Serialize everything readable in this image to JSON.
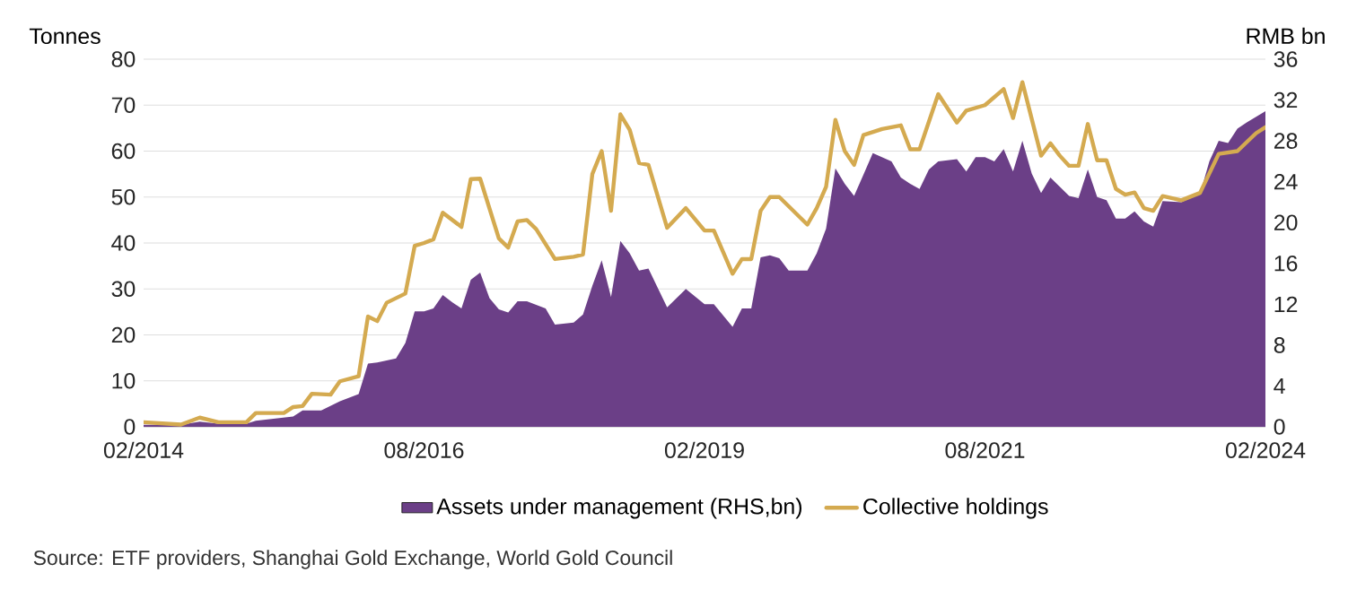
{
  "chart_data": {
    "type": "line",
    "ylabel": "Tonnes",
    "y2label": "RMB bn",
    "xlim": [
      "2014-02",
      "2024-02"
    ],
    "xticks": [
      {
        "value": "2014-02",
        "label": "02/2014"
      },
      {
        "value": "2016-08",
        "label": "08/2016"
      },
      {
        "value": "2019-02",
        "label": "02/2019"
      },
      {
        "value": "2021-08",
        "label": "08/2021"
      },
      {
        "value": "2024-02",
        "label": "02/2024"
      }
    ],
    "ylim": [
      0,
      80
    ],
    "yticks": [
      0,
      10,
      20,
      30,
      40,
      50,
      60,
      70,
      80
    ],
    "y2lim": [
      0,
      36
    ],
    "y2ticks": [
      0,
      4,
      8,
      12,
      16,
      20,
      24,
      28,
      32,
      36
    ],
    "grid": "y",
    "legend": "bottom",
    "series": [
      {
        "name": "Assets under management (RHS,bn)",
        "type": "area",
        "axis": "y2",
        "color": "#6b3f87",
        "x": [
          "2014-02",
          "2014-06",
          "2014-08",
          "2014-10",
          "2015-01",
          "2015-02",
          "2015-06",
          "2015-07",
          "2015-09",
          "2015-11",
          "2016-01",
          "2016-02",
          "2016-03",
          "2016-05",
          "2016-06",
          "2016-07",
          "2016-08",
          "2016-09",
          "2016-10",
          "2016-11",
          "2016-12",
          "2017-01",
          "2017-02",
          "2017-03",
          "2017-04",
          "2017-05",
          "2017-06",
          "2017-07",
          "2017-09",
          "2017-10",
          "2017-12",
          "2018-01",
          "2018-02",
          "2018-03",
          "2018-04",
          "2018-05",
          "2018-06",
          "2018-07",
          "2018-08",
          "2018-10",
          "2018-12",
          "2019-02",
          "2019-03",
          "2019-05",
          "2019-06",
          "2019-07",
          "2019-08",
          "2019-09",
          "2019-10",
          "2019-11",
          "2020-01",
          "2020-02",
          "2020-03",
          "2020-04",
          "2020-05",
          "2020-06",
          "2020-07",
          "2020-08",
          "2020-09",
          "2020-10",
          "2020-11",
          "2020-12",
          "2021-01",
          "2021-02",
          "2021-03",
          "2021-05",
          "2021-06",
          "2021-07",
          "2021-08",
          "2021-09",
          "2021-10",
          "2021-11",
          "2021-12",
          "2022-01",
          "2022-02",
          "2022-03",
          "2022-04",
          "2022-05",
          "2022-06",
          "2022-07",
          "2022-08",
          "2022-09",
          "2022-10",
          "2022-11",
          "2022-12",
          "2023-01",
          "2023-02",
          "2023-03",
          "2023-05",
          "2023-07",
          "2023-08",
          "2023-09",
          "2023-10",
          "2023-11",
          "2023-12",
          "2024-02"
        ],
        "values": [
          0.2,
          0.2,
          0.5,
          0.3,
          0.3,
          0.6,
          1,
          1.6,
          1.6,
          2.5,
          3.2,
          6.2,
          6.3,
          6.7,
          8.2,
          11.3,
          11.3,
          11.6,
          12.9,
          12.2,
          11.6,
          14.4,
          15.1,
          12.6,
          11.5,
          11.2,
          12.3,
          12.3,
          11.6,
          10,
          10.2,
          11,
          13.8,
          16.3,
          12.7,
          18.2,
          17,
          15.3,
          15.5,
          11.7,
          13.5,
          12,
          12,
          9.8,
          11.6,
          11.6,
          16.6,
          16.8,
          16.5,
          15.3,
          15.3,
          17,
          19.4,
          25.3,
          23.8,
          22.6,
          24.7,
          26.8,
          26.4,
          26,
          24.4,
          23.8,
          23.3,
          25.2,
          26,
          26.2,
          25,
          26.4,
          26.4,
          26,
          27.2,
          25,
          28,
          24.8,
          22.9,
          24.4,
          23.5,
          22.6,
          22.4,
          25.2,
          22.5,
          22.2,
          20.4,
          20.4,
          21.1,
          20.1,
          19.6,
          22.1,
          22,
          22.8,
          26,
          28,
          27.8,
          29.2,
          29.8,
          30.9
        ]
      },
      {
        "name": "Collective holdings",
        "axis": "y",
        "color": "#d4aa50",
        "x": [
          "2014-02",
          "2014-06",
          "2014-08",
          "2014-10",
          "2015-01",
          "2015-02",
          "2015-05",
          "2015-06",
          "2015-07",
          "2015-08",
          "2015-10",
          "2015-11",
          "2016-01",
          "2016-02",
          "2016-03",
          "2016-04",
          "2016-06",
          "2016-07",
          "2016-08",
          "2016-09",
          "2016-10",
          "2016-12",
          "2017-01",
          "2017-02",
          "2017-04",
          "2017-05",
          "2017-06",
          "2017-07",
          "2017-08",
          "2017-10",
          "2017-12",
          "2018-01",
          "2018-02",
          "2018-03",
          "2018-04",
          "2018-05",
          "2018-06",
          "2018-07",
          "2018-08",
          "2018-10",
          "2018-12",
          "2019-02",
          "2019-03",
          "2019-05",
          "2019-06",
          "2019-07",
          "2019-08",
          "2019-09",
          "2019-10",
          "2020-01",
          "2020-02",
          "2020-03",
          "2020-04",
          "2020-05",
          "2020-06",
          "2020-07",
          "2020-09",
          "2020-11",
          "2020-12",
          "2021-01",
          "2021-03",
          "2021-05",
          "2021-06",
          "2021-08",
          "2021-10",
          "2021-11",
          "2021-12",
          "2022-02",
          "2022-03",
          "2022-04",
          "2022-05",
          "2022-06",
          "2022-07",
          "2022-08",
          "2022-09",
          "2022-10",
          "2022-11",
          "2022-12",
          "2023-01",
          "2023-02",
          "2023-03",
          "2023-05",
          "2023-07",
          "2023-09",
          "2023-11",
          "2024-01",
          "2024-02"
        ],
        "values": [
          1,
          0.5,
          2,
          1,
          1,
          3,
          3,
          4.3,
          4.5,
          7.2,
          7,
          9.9,
          11,
          24,
          23,
          27,
          29,
          39.4,
          40,
          40.8,
          46.6,
          43.5,
          53.9,
          54,
          41,
          39,
          44.7,
          45,
          43,
          36.5,
          37,
          37.5,
          55,
          60,
          47,
          68,
          64.6,
          57.4,
          57,
          43.3,
          47.6,
          42.7,
          42.7,
          33.3,
          36.5,
          36.5,
          47,
          50,
          50,
          44,
          47.6,
          52.2,
          66.8,
          60,
          57,
          63.5,
          64.8,
          65.6,
          60.4,
          60.4,
          72.4,
          66.2,
          68.8,
          70,
          73.5,
          67.2,
          75,
          59,
          61.7,
          59,
          56.8,
          56.8,
          65.9,
          58,
          58,
          51.8,
          50.5,
          51,
          47.6,
          47,
          50.2,
          49.3,
          50.9,
          59.4,
          60,
          63.9,
          65.2
        ]
      }
    ],
    "annotations": [
      "Source: ETF providers, Shanghai Gold Exchange, World Gold Council"
    ]
  }
}
